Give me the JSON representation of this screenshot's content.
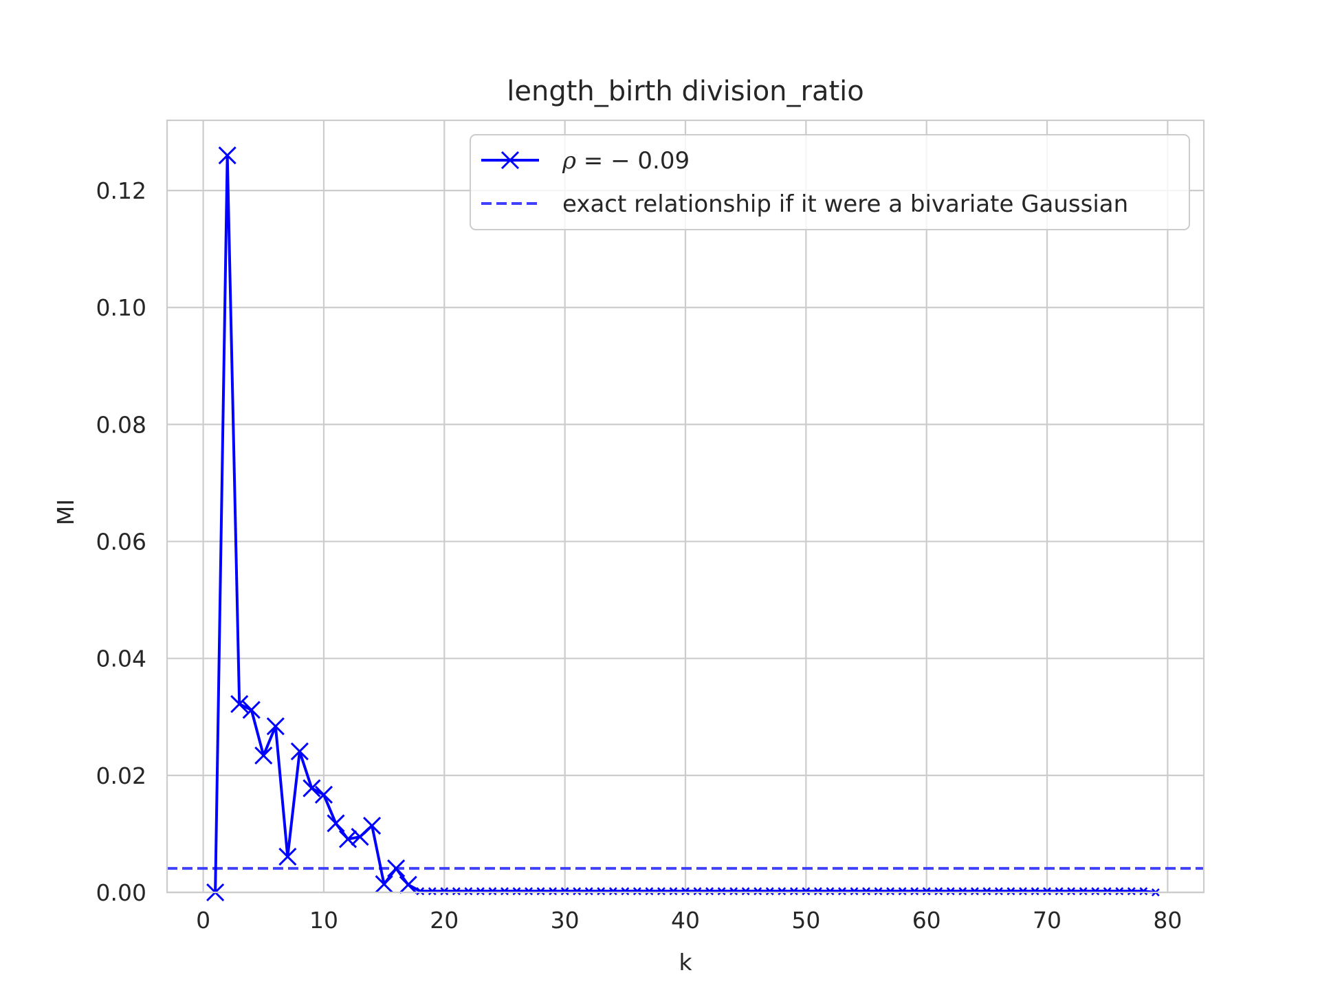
{
  "chart_data": {
    "type": "line",
    "title": "length_birth division_ratio",
    "xlabel": "k",
    "ylabel": "MI",
    "xlim": [
      -3,
      83
    ],
    "ylim": [
      0,
      0.132
    ],
    "xticks": [
      0,
      10,
      20,
      30,
      40,
      50,
      60,
      70,
      80
    ],
    "yticks": [
      0.0,
      0.02,
      0.04,
      0.06,
      0.08,
      0.1,
      0.12
    ],
    "grid": true,
    "legend_placement": "upper-right",
    "series": [
      {
        "name": "ρ = − 0.09",
        "legend_symbol": "ρ",
        "legend_rest": " = − 0.09",
        "style": "solid",
        "marker": "x",
        "color": "#0000ff",
        "x": [
          1,
          2,
          3,
          4,
          5,
          6,
          7,
          8,
          9,
          10,
          11,
          12,
          13,
          14,
          15,
          16,
          17,
          18,
          19,
          20,
          21,
          22,
          23,
          24,
          25,
          26,
          27,
          28,
          29,
          30,
          31,
          32,
          33,
          34,
          35,
          36,
          37,
          38,
          39,
          40,
          41,
          42,
          43,
          44,
          45,
          46,
          47,
          48,
          49,
          50,
          51,
          52,
          53,
          54,
          55,
          56,
          57,
          58,
          59,
          60,
          61,
          62,
          63,
          64,
          65,
          66,
          67,
          68,
          69,
          70,
          71,
          72,
          73,
          74,
          75,
          76,
          77,
          78,
          79
        ],
        "y": [
          0.0,
          0.126,
          0.0322,
          0.0312,
          0.0234,
          0.0284,
          0.0061,
          0.0241,
          0.0178,
          0.0167,
          0.0118,
          0.0091,
          0.0095,
          0.0114,
          0.0014,
          0.0041,
          0.0013,
          0.0002,
          0.0002,
          0.0002,
          0.0002,
          0.0002,
          0.0002,
          0.0002,
          0.0002,
          0.0002,
          0.0002,
          0.0002,
          0.0002,
          0.0002,
          0.0002,
          0.0002,
          0.0002,
          0.0002,
          0.0002,
          0.0002,
          0.0002,
          0.0002,
          0.0002,
          0.0002,
          0.0002,
          0.0002,
          0.0002,
          0.0002,
          0.0002,
          0.0002,
          0.0002,
          0.0002,
          0.0002,
          0.0002,
          0.0002,
          0.0002,
          0.0002,
          0.0002,
          0.0002,
          0.0002,
          0.0002,
          0.0002,
          0.0002,
          0.0002,
          0.0002,
          0.0002,
          0.0002,
          0.0002,
          0.0002,
          0.0002,
          0.0002,
          0.0002,
          0.0002,
          0.0002,
          0.0002,
          0.0002,
          0.0002,
          0.0002,
          0.0002,
          0.0002,
          0.0002,
          0.0002,
          0.0
        ]
      },
      {
        "name": "exact relationship if it were a bivariate Gaussian",
        "style": "dashed",
        "color": "#4040ff",
        "y_constant": 0.0041
      }
    ]
  }
}
